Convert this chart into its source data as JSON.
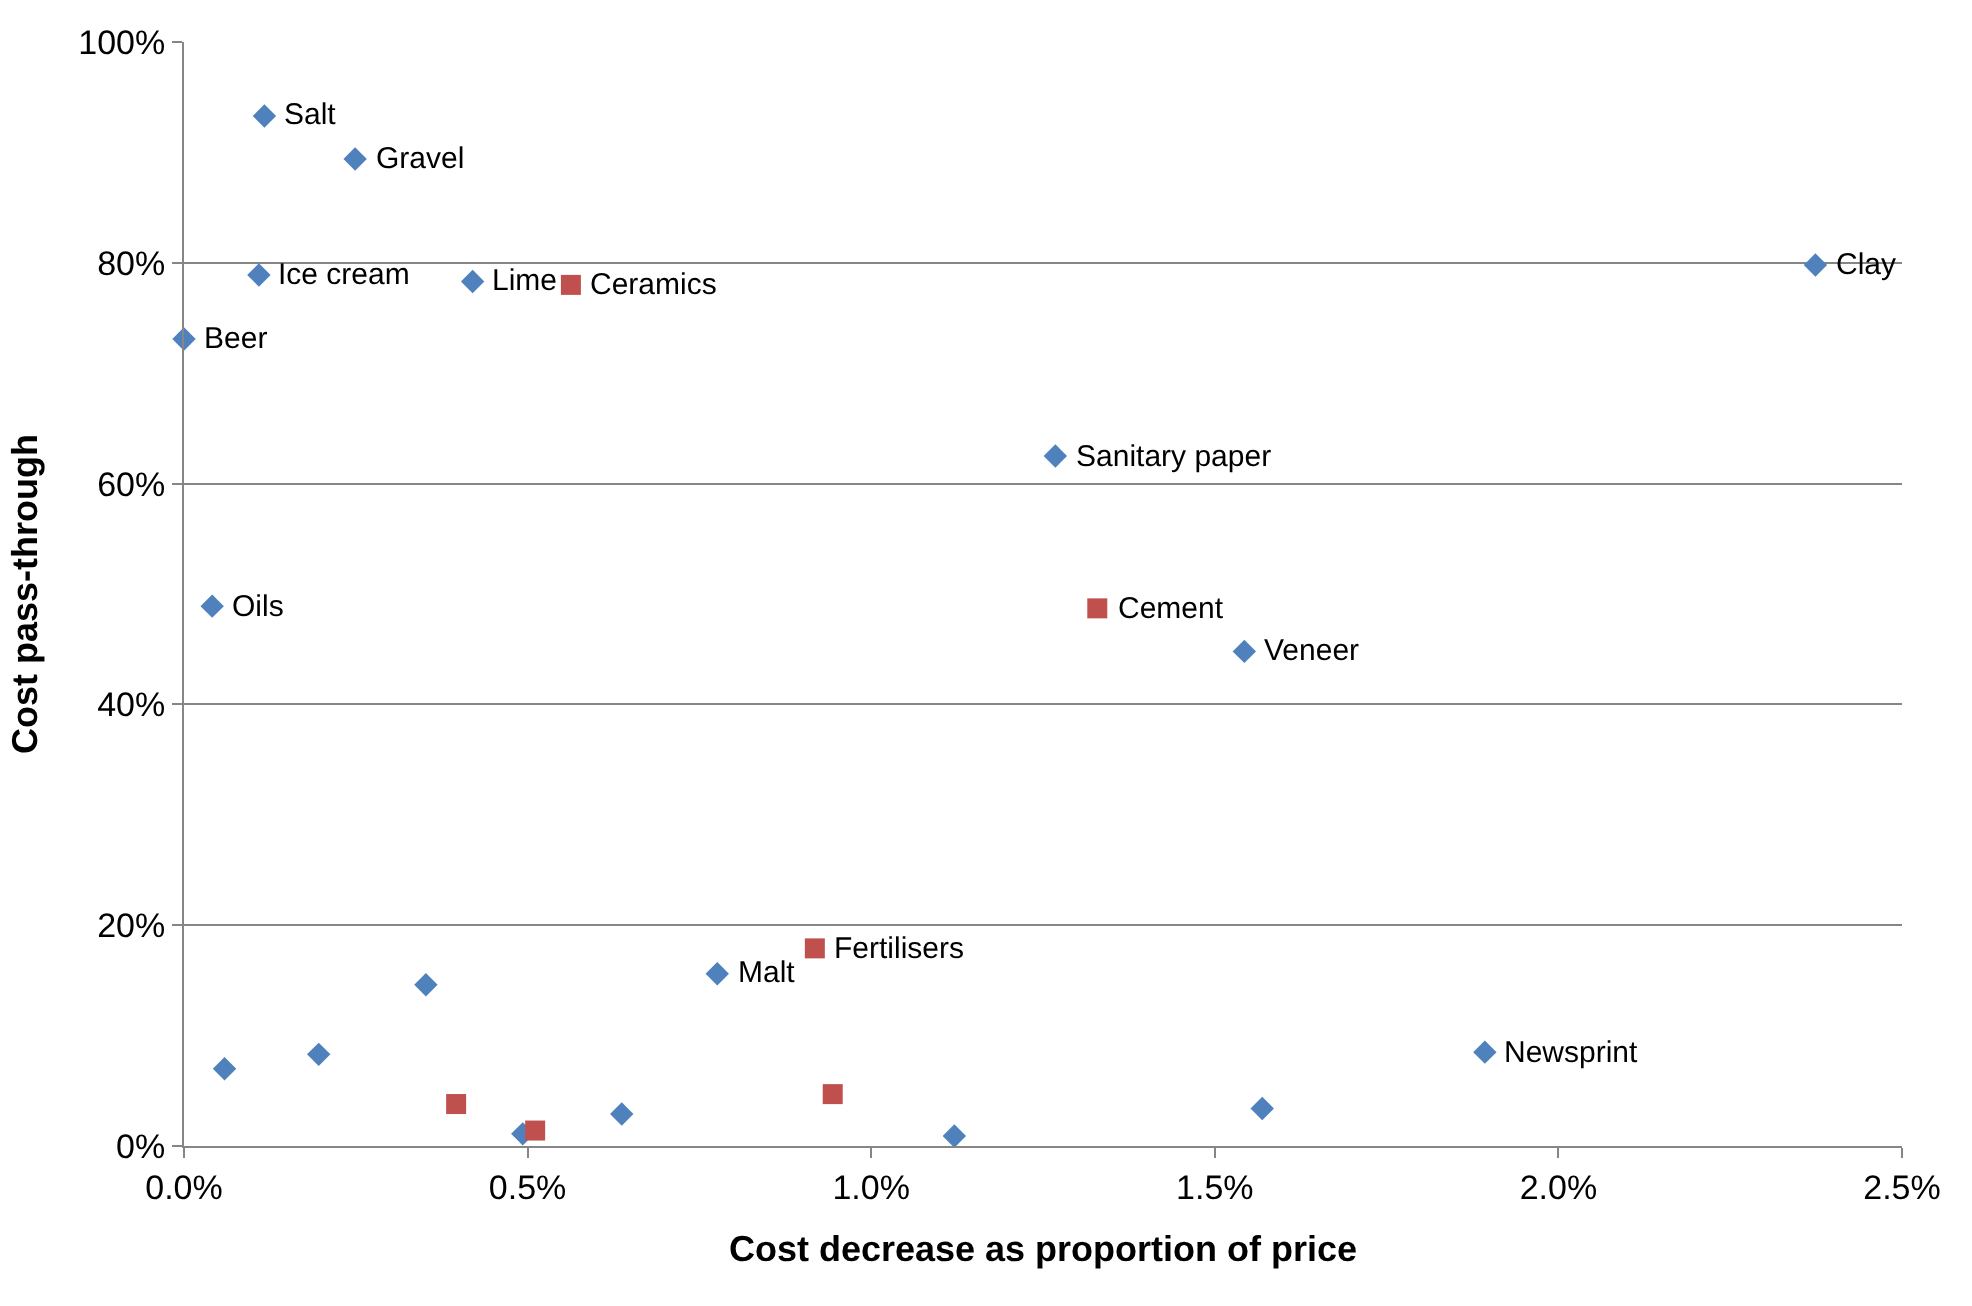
{
  "chart_data": {
    "type": "scatter",
    "xlabel": "Cost decrease as proportion of price",
    "ylabel": "Cost pass-through",
    "xlim": [
      0,
      2.5
    ],
    "xticks": [
      {
        "value": 0,
        "label": "0.0%"
      },
      {
        "value": 0.5,
        "label": "0.5%"
      },
      {
        "value": 1.0,
        "label": "1.0%"
      },
      {
        "value": 1.5,
        "label": "1.5%"
      },
      {
        "value": 2.0,
        "label": "2.0%"
      },
      {
        "value": 2.5,
        "label": "2.5%"
      }
    ],
    "ylim": [
      0,
      100
    ],
    "yticks": [
      {
        "value": 0,
        "label": "0%"
      },
      {
        "value": 20,
        "label": "20%"
      },
      {
        "value": 40,
        "label": "40%"
      },
      {
        "value": 60,
        "label": "60%"
      },
      {
        "value": 80,
        "label": "80%"
      },
      {
        "value": 100,
        "label": "100%"
      }
    ],
    "grid": "y",
    "series": [
      {
        "color": "#4f81bd",
        "marker": "diamond",
        "x": [
          0.117,
          0.249,
          0.109,
          0.42,
          0.0,
          2.374,
          1.268,
          0.041,
          1.543,
          0.776,
          1.893,
          0.059,
          0.196,
          0.352,
          0.493,
          0.637,
          1.121,
          1.569
        ],
        "values": [
          93.3,
          89.4,
          78.9,
          78.3,
          73.1,
          79.8,
          62.5,
          48.9,
          44.8,
          15.6,
          8.5,
          7.0,
          8.3,
          14.6,
          1.1,
          2.9,
          0.9,
          3.4
        ]
      },
      {
        "color": "#c0504d",
        "marker": "square",
        "x": [
          0.563,
          1.329,
          0.918,
          0.396,
          0.511,
          0.944
        ],
        "values": [
          78.0,
          48.7,
          17.9,
          3.8,
          1.4,
          4.7
        ]
      }
    ],
    "annotations": [
      {
        "text": "Salt",
        "x": 0.117,
        "y": 93.3
      },
      {
        "text": "Gravel",
        "x": 0.249,
        "y": 89.4
      },
      {
        "text": "Ice cream",
        "x": 0.109,
        "y": 78.9
      },
      {
        "text": "Lime",
        "x": 0.42,
        "y": 78.3
      },
      {
        "text": "Beer",
        "x": 0.0,
        "y": 73.1
      },
      {
        "text": "Clay",
        "x": 2.374,
        "y": 79.8
      },
      {
        "text": "Sanitary paper",
        "x": 1.268,
        "y": 62.5
      },
      {
        "text": "Oils",
        "x": 0.041,
        "y": 48.9
      },
      {
        "text": "Veneer",
        "x": 1.543,
        "y": 44.8
      },
      {
        "text": "Malt",
        "x": 0.776,
        "y": 15.6
      },
      {
        "text": "Newsprint",
        "x": 1.893,
        "y": 8.5
      },
      {
        "text": "Ceramics",
        "x": 0.563,
        "y": 78.0
      },
      {
        "text": "Cement",
        "x": 1.329,
        "y": 48.7
      },
      {
        "text": "Fertilisers",
        "x": 0.918,
        "y": 17.9
      }
    ]
  }
}
